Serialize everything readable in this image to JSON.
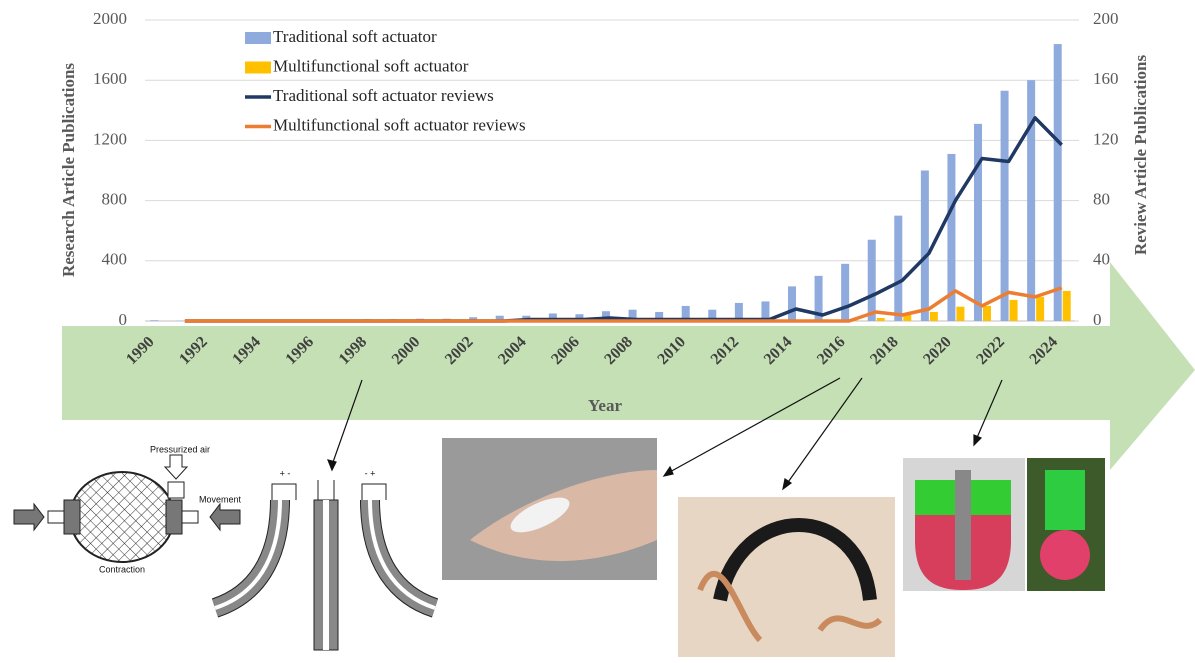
{
  "chart_data": {
    "type": "bar-line",
    "x_label": "Year",
    "y_label": "Research Article Publications",
    "y2_label": "Review Article Publications",
    "categories": [
      "1990",
      null,
      "1992",
      null,
      "1994",
      null,
      "1996",
      null,
      "1998",
      null,
      "2000",
      null,
      "2002",
      null,
      "2004",
      null,
      "2006",
      null,
      "2008",
      null,
      "2010",
      null,
      "2012",
      null,
      "2014",
      null,
      "2016",
      null,
      "2018",
      null,
      "2020",
      null,
      "2022",
      null,
      "2024"
    ],
    "ylim": [
      0,
      2000
    ],
    "yticks": [
      0,
      400,
      800,
      1200,
      1600,
      2000
    ],
    "y2lim": [
      0,
      200
    ],
    "y2ticks": [
      0,
      40,
      80,
      120,
      160,
      200
    ],
    "grid": true,
    "series": [
      {
        "name": "Traditional soft actuator",
        "kind": "bar",
        "color": "#8faadc",
        "values": [
          5,
          2,
          3,
          3,
          5,
          5,
          8,
          10,
          12,
          12,
          15,
          15,
          25,
          35,
          35,
          50,
          45,
          65,
          75,
          60,
          100,
          75,
          120,
          130,
          230,
          300,
          380,
          540,
          700,
          1000,
          1110,
          1310,
          1530,
          1600,
          1840
        ]
      },
      {
        "name": "Multifunctional soft actuator",
        "kind": "bar",
        "color": "#ffc000",
        "values": [
          0,
          0,
          0,
          0,
          0,
          0,
          0,
          0,
          0,
          0,
          0,
          0,
          0,
          0,
          0,
          0,
          0,
          0,
          0,
          0,
          0,
          0,
          0,
          0,
          0,
          0,
          5,
          20,
          40,
          60,
          95,
          100,
          140,
          160,
          200
        ]
      },
      {
        "name": "Traditional soft actuator reviews",
        "kind": "line",
        "axis": "y2",
        "color": "#1f3864",
        "values": [
          null,
          0,
          0,
          0,
          0,
          0,
          0,
          0,
          0,
          0,
          0,
          0,
          0,
          0,
          1,
          1,
          1,
          2,
          1,
          1,
          1,
          1,
          1,
          1,
          8,
          4,
          10,
          18,
          27,
          45,
          80,
          108,
          106,
          135,
          117
        ]
      },
      {
        "name": "Multifunctional soft actuator reviews",
        "kind": "line",
        "axis": "y2",
        "color": "#ed7d31",
        "values": [
          null,
          0,
          0,
          0,
          0,
          0,
          0,
          0,
          0,
          0,
          0,
          0,
          0,
          0,
          0,
          0,
          0,
          0,
          0,
          0,
          0,
          0,
          0,
          0,
          0,
          0,
          0,
          6,
          4,
          8,
          20,
          10,
          19,
          16,
          22
        ]
      }
    ]
  },
  "illustrations": {
    "pressurized_air": "Pressurized air",
    "movement": "Movement",
    "contraction": "Contraction",
    "polarity": [
      "+ -",
      "- +"
    ]
  }
}
